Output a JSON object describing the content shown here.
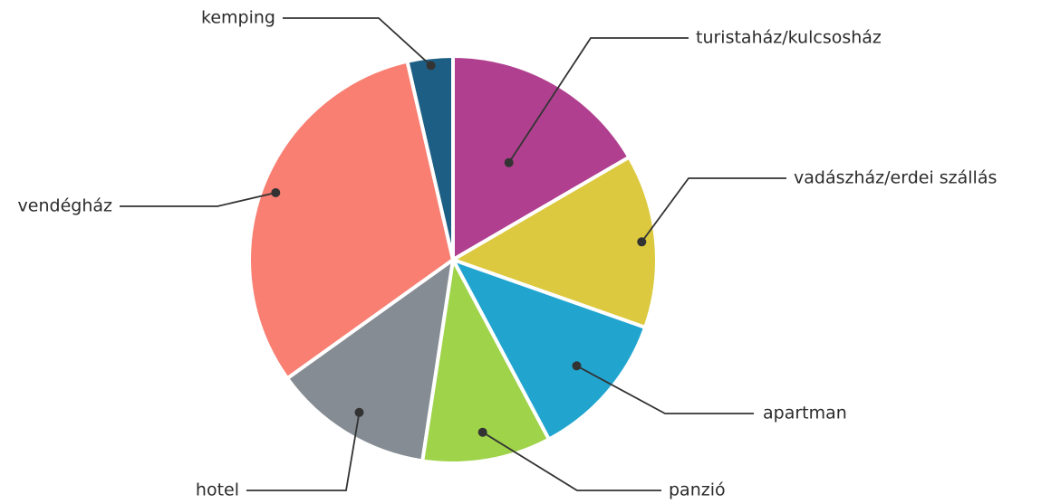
{
  "chart_data": {
    "type": "pie",
    "title": "",
    "start_angle_deg": 0,
    "direction": "clockwise",
    "slices": [
      {
        "label": "turistaház/kulcsosház",
        "value": 16.6,
        "color": "#b0408f"
      },
      {
        "label": "vadászház/erdei szállás",
        "value": 13.8,
        "color": "#dcc93f"
      },
      {
        "label": "apartman",
        "value": 11.8,
        "color": "#21a5cf"
      },
      {
        "label": "panzió",
        "value": 10.2,
        "color": "#9fd34a"
      },
      {
        "label": "hotel",
        "value": 12.7,
        "color": "#858c94"
      },
      {
        "label": "vendégház",
        "value": 31.3,
        "color": "#f87f72"
      },
      {
        "label": "kemping",
        "value": 3.6,
        "color": "#1d5f84"
      }
    ]
  }
}
